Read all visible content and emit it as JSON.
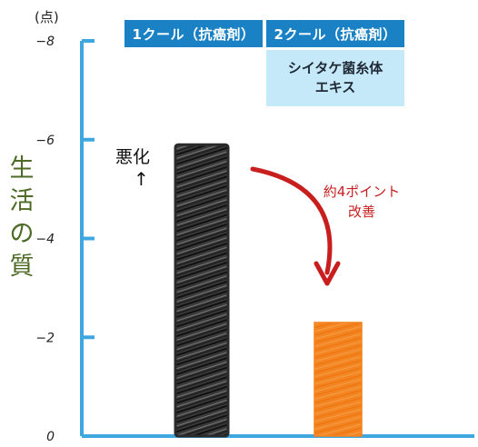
{
  "chart_data": {
    "type": "bar",
    "categories": [
      "1クール（抗癌剤）",
      "2クール（抗癌剤）"
    ],
    "category_sublabel": [
      "",
      "シイタケ菌糸体エキス"
    ],
    "subheader_lines": [
      "シイタケ菌糸体",
      "エキス"
    ],
    "values": [
      -5.9,
      -2.3
    ],
    "unit_label": "(点)",
    "ylabel": "生活の質",
    "ylabel_chars": [
      "生",
      "活",
      "の",
      "質"
    ],
    "ylim": [
      0,
      -8
    ],
    "yticks": [
      0,
      -2,
      -4,
      -6,
      -8
    ],
    "ytick_labels": [
      "0",
      "−2",
      "−4",
      "−6",
      "−8"
    ],
    "bar_colors": [
      "#2b2b2b",
      "#f5831f"
    ],
    "axis_color": "#3fa7e0",
    "annotations": {
      "worse": "悪化",
      "worse_arrow": "↑",
      "improvement_line1": "約4ポイント",
      "improvement_line2": "改善"
    },
    "grid": false,
    "legend": "none"
  }
}
